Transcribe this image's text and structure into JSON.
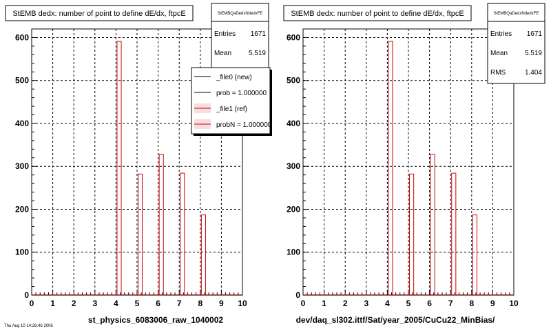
{
  "footer_text": "Thu Aug 10 14:26:46 2006",
  "chart_data": [
    {
      "type": "bar",
      "title": "StEMB dedx: number of point to define dE/dx, ftpcE",
      "xlabel": "st_physics_6083006_raw_1040002",
      "ylabel": "",
      "xlim": [
        0,
        10
      ],
      "ylim": [
        0,
        620
      ],
      "xticks": [
        "0",
        "1",
        "2",
        "3",
        "4",
        "5",
        "6",
        "7",
        "8",
        "9",
        "10"
      ],
      "yticks": [
        "0",
        "100",
        "200",
        "300",
        "400",
        "500",
        "600"
      ],
      "grid": true,
      "bins": [
        {
          "x": 4.15,
          "value": 591
        },
        {
          "x": 5.15,
          "value": 282
        },
        {
          "x": 6.15,
          "value": 328
        },
        {
          "x": 7.15,
          "value": 284
        },
        {
          "x": 8.15,
          "value": 187
        }
      ],
      "stats": {
        "name": "StEMBQaDedxNdedxFE",
        "rows": [
          {
            "label": "Entries",
            "value": "1671"
          },
          {
            "label": "Mean",
            "value": "5.519"
          }
        ]
      },
      "legend": {
        "placement": "top-right",
        "entries": [
          {
            "label": "_file0 (new)",
            "color": "#000000"
          },
          {
            "label": "prob = 1.000000",
            "color": "#000000"
          },
          {
            "label": "_file1 (ref)",
            "color": "#cc0000"
          },
          {
            "label": "probN = 1.000000",
            "color": "#cc0000"
          }
        ]
      }
    },
    {
      "type": "bar",
      "title": "StEMB dedx: number of point to define dE/dx, ftpcE",
      "xlabel": "dev/daq_sl302.ittf/Sat/year_2005/CuCu22_MinBias/",
      "ylabel": "",
      "xlim": [
        0,
        10
      ],
      "ylim": [
        0,
        620
      ],
      "xticks": [
        "0",
        "1",
        "2",
        "3",
        "4",
        "5",
        "6",
        "7",
        "8",
        "9",
        "10"
      ],
      "yticks": [
        "0",
        "100",
        "200",
        "300",
        "400",
        "500",
        "600"
      ],
      "grid": true,
      "bins": [
        {
          "x": 4.15,
          "value": 591
        },
        {
          "x": 5.15,
          "value": 282
        },
        {
          "x": 6.15,
          "value": 328
        },
        {
          "x": 7.15,
          "value": 284
        },
        {
          "x": 8.15,
          "value": 187
        }
      ],
      "stats": {
        "name": "StEMBQaDedxNdedxFE",
        "rows": [
          {
            "label": "Entries",
            "value": "1671"
          },
          {
            "label": "Mean",
            "value": "5.519"
          },
          {
            "label": "RMS",
            "value": "1.404"
          }
        ]
      }
    }
  ]
}
